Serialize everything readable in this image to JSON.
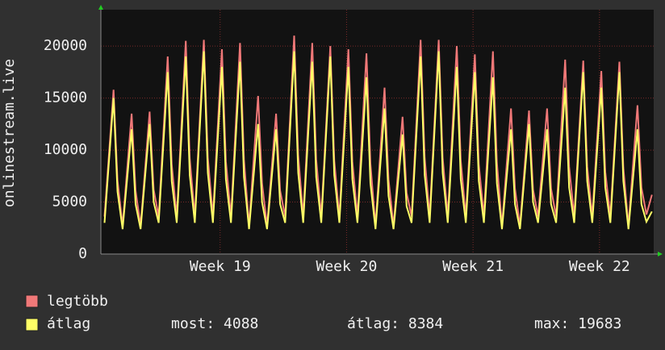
{
  "chart_data": {
    "type": "line",
    "y_label": "onlinestream.live",
    "x": [
      0.2,
      0.7,
      0.92,
      1.2,
      1.7,
      1.92,
      2.2,
      2.7,
      2.92,
      3.2,
      3.7,
      3.92,
      4.2,
      4.7,
      4.92,
      5.2,
      5.7,
      5.92,
      6.2,
      6.7,
      6.92,
      7.2,
      7.7,
      7.92,
      8.2,
      8.7,
      8.92,
      9.2,
      9.7,
      9.92,
      10.2,
      10.7,
      10.92,
      11.2,
      11.7,
      11.92,
      12.2,
      12.7,
      12.92,
      13.2,
      13.7,
      13.92,
      14.2,
      14.7,
      14.92,
      15.2,
      15.7,
      15.92,
      16.2,
      16.7,
      16.92,
      17.2,
      17.7,
      17.92,
      18.2,
      18.7,
      18.92,
      19.2,
      19.7,
      19.92,
      20.2,
      20.7,
      20.92,
      21.2,
      21.7,
      21.92,
      22.2,
      22.7,
      22.92,
      23.2,
      23.7,
      23.92,
      24.2,
      24.7,
      24.92,
      25.2,
      25.7,
      25.92,
      26.2,
      26.7,
      26.92,
      27.2,
      27.7,
      27.92,
      28.2,
      28.7,
      28.92,
      29.2,
      29.7,
      29.92,
      30.2,
      30.5
    ],
    "series": [
      {
        "name": "legtöbb",
        "color": "#f07878",
        "values": [
          3600,
          15800,
          7100,
          2700,
          13500,
          6100,
          2700,
          13700,
          6200,
          3600,
          19000,
          8600,
          3600,
          20500,
          9200,
          3600,
          20600,
          9300,
          3600,
          19700,
          8900,
          3600,
          20300,
          9100,
          2700,
          15200,
          6800,
          2700,
          13500,
          6100,
          3600,
          21000,
          9500,
          3600,
          20300,
          9100,
          3600,
          20000,
          9000,
          3600,
          19700,
          8900,
          3600,
          19300,
          8700,
          2700,
          16000,
          7200,
          2700,
          13200,
          5900,
          3600,
          20600,
          9300,
          3600,
          20600,
          9300,
          3600,
          20000,
          9000,
          3600,
          19200,
          8600,
          3600,
          19500,
          8800,
          2700,
          14000,
          6300,
          2700,
          13800,
          6200,
          3600,
          14000,
          6300,
          3600,
          18700,
          8400,
          3600,
          18600,
          8400,
          3600,
          17600,
          7900,
          3600,
          18500,
          8300,
          2700,
          14300,
          6400,
          3800,
          5700
        ]
      },
      {
        "name": "átlag",
        "color": "#ffff66",
        "values": [
          3000,
          15000,
          6000,
          2400,
          12000,
          4800,
          2400,
          12500,
          5000,
          3000,
          17500,
          7000,
          3000,
          19000,
          7600,
          3000,
          19500,
          7800,
          3000,
          18000,
          7200,
          3000,
          18500,
          7400,
          2400,
          12500,
          5000,
          2400,
          12000,
          4800,
          3000,
          19500,
          7800,
          3000,
          18500,
          7400,
          3000,
          19000,
          7600,
          3000,
          18000,
          7200,
          3000,
          17000,
          6800,
          2400,
          14000,
          5600,
          2400,
          11500,
          4600,
          3000,
          19000,
          7600,
          3000,
          19500,
          7800,
          3000,
          18000,
          7200,
          3000,
          17500,
          7000,
          3000,
          17000,
          6800,
          2400,
          12000,
          4800,
          2400,
          12500,
          5000,
          3000,
          12000,
          4800,
          3000,
          16000,
          6400,
          3000,
          17500,
          7000,
          3000,
          16000,
          6400,
          3000,
          17500,
          7000,
          2400,
          12000,
          4800,
          3100,
          4088
        ]
      }
    ],
    "xlim": [
      0,
      30.6
    ],
    "xticks": [
      {
        "value": 6.6,
        "label": "Week 19"
      },
      {
        "value": 13.6,
        "label": "Week 20"
      },
      {
        "value": 20.6,
        "label": "Week 21"
      },
      {
        "value": 27.6,
        "label": "Week 22"
      }
    ],
    "ylim": [
      0,
      23500
    ],
    "yticks": [
      0,
      5000,
      10000,
      15000,
      20000
    ],
    "grid": true,
    "stats": [
      "most: 4088",
      "átlag: 8384",
      "max: 19683"
    ]
  }
}
